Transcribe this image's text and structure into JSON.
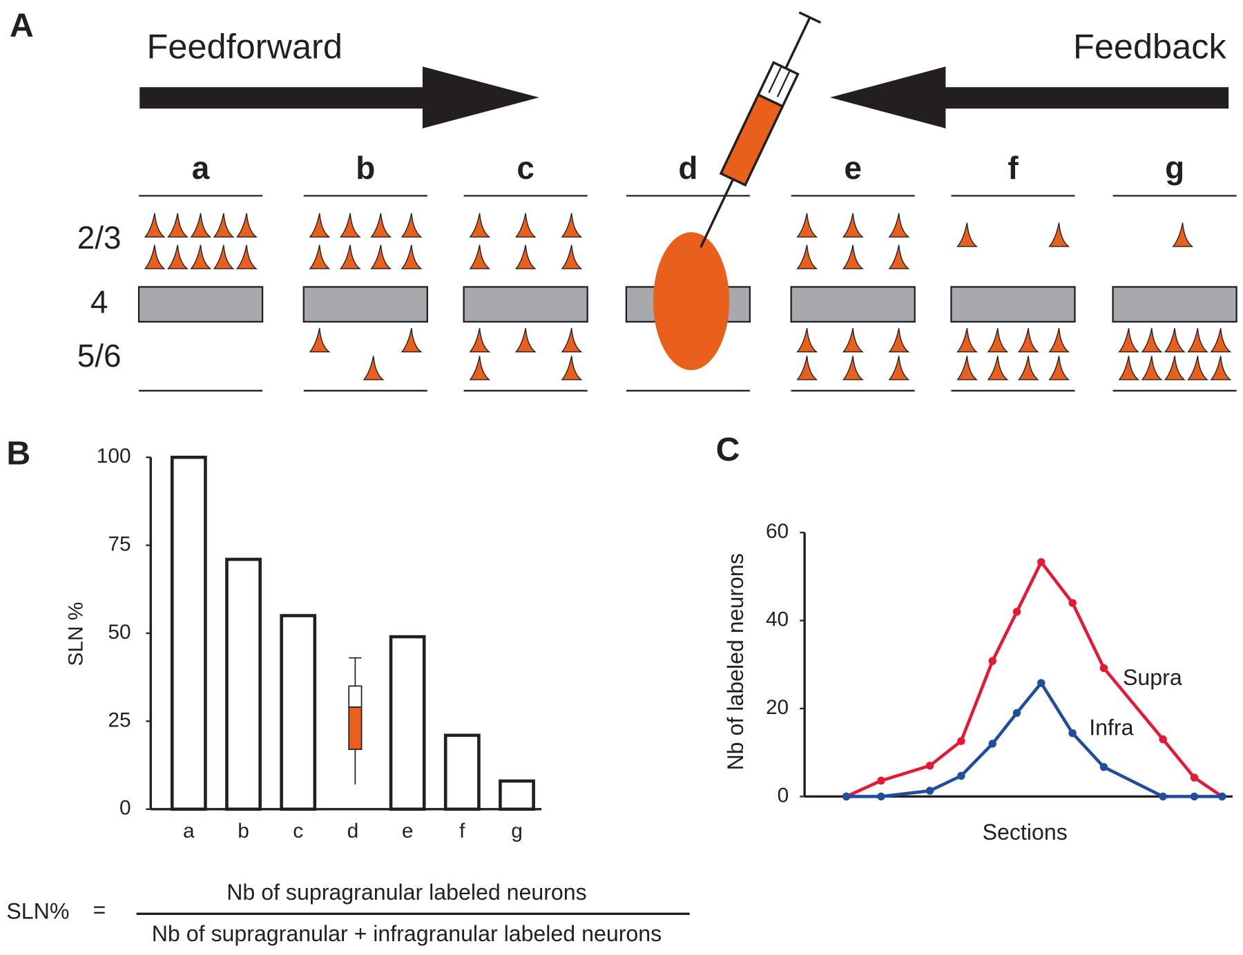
{
  "diagram": {
    "panel_label": "A",
    "feedforward": "Feedforward",
    "feedback": "Feedback",
    "layers": [
      "2/3",
      "4",
      "5/6"
    ],
    "columns": [
      "a",
      "b",
      "c",
      "d",
      "e",
      "f",
      "g"
    ],
    "supra_counts": [
      10,
      8,
      6,
      null,
      6,
      2,
      1
    ],
    "infra_counts": [
      0,
      3,
      5,
      null,
      6,
      8,
      10
    ],
    "neuron_color": "#e8601c"
  },
  "chart_data": [
    {
      "type": "bar",
      "panel_label": "B",
      "ylabel": "SLN %",
      "categories": [
        "a",
        "b",
        "c",
        "d",
        "e",
        "f",
        "g"
      ],
      "values": [
        100,
        71,
        55,
        null,
        49,
        21,
        8
      ],
      "boxes": [
        null,
        null,
        null,
        {
          "whisker_low": 7,
          "q1": 17,
          "median": 29,
          "q3": 35,
          "whisker_high": 43
        },
        null,
        null,
        null
      ],
      "color": "#ffffff",
      "box_color": "#e8601c",
      "ylim": [
        0,
        100
      ],
      "yticks": [
        0,
        25,
        50,
        75,
        100
      ]
    },
    {
      "type": "line",
      "panel_label": "C",
      "xlabel": "Sections",
      "ylabel": "Nb of labeled neurons",
      "x": [
        1.2,
        2.2,
        3.6,
        4.5,
        5.4,
        6.1,
        6.8,
        7.7,
        8.6,
        10.3,
        11.2,
        12.0
      ],
      "xlim": [
        0,
        12.3
      ],
      "ylim": [
        0,
        60
      ],
      "yticks": [
        0,
        20,
        40,
        60
      ],
      "series": [
        {
          "name": "Supra",
          "color": "#e31a35",
          "values": [
            0,
            3.6,
            7,
            12.6,
            30.8,
            42,
            53.3,
            44,
            29.2,
            13,
            4.3,
            0
          ]
        },
        {
          "name": "Infra",
          "color": "#1f4e9c",
          "values": [
            0,
            0,
            1.3,
            4.7,
            12,
            19,
            25.8,
            14.4,
            6.7,
            0,
            0,
            0
          ]
        }
      ]
    }
  ],
  "formula": {
    "lhs": "SLN%",
    "equals": "=",
    "numerator": "Nb of supragranular labeled neurons",
    "denominator": "Nb of supragranular + infragranular labeled neurons"
  }
}
